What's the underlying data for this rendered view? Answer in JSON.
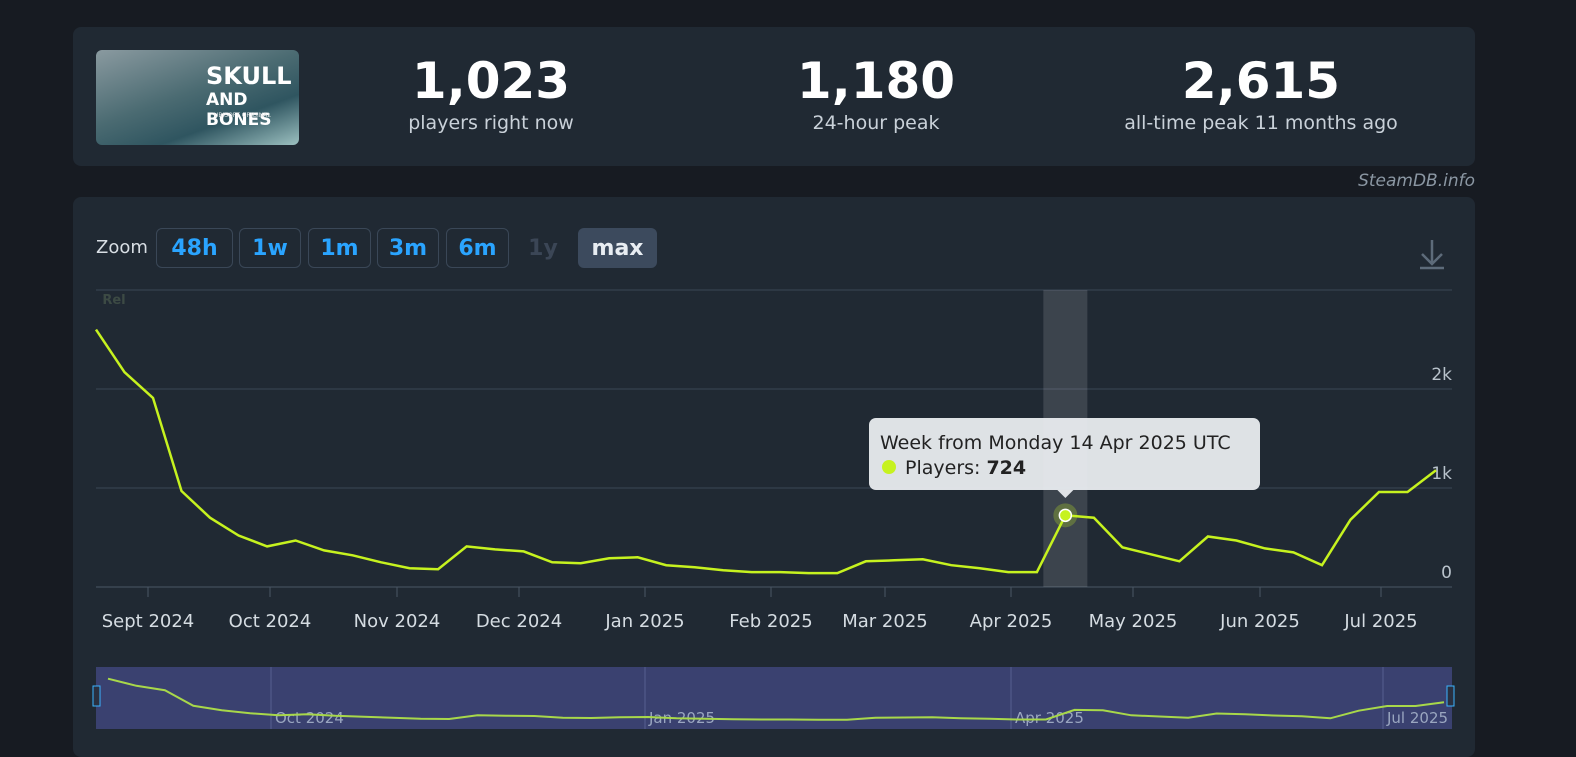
{
  "header": {
    "game_art": {
      "title": "SKULL",
      "subtitle": "AND BONES",
      "tagline": "UBISOFT ORIGINAL"
    },
    "stats": [
      {
        "value": "1,023",
        "label": "players right now"
      },
      {
        "value": "1,180",
        "label": "24-hour peak"
      },
      {
        "value": "2,615",
        "label": "all-time peak 11 months ago"
      }
    ],
    "credit": "SteamDB.info"
  },
  "zoom": {
    "label": "Zoom",
    "buttons": [
      "48h",
      "1w",
      "1m",
      "3m",
      "6m",
      "1y",
      "max"
    ],
    "disabled": "1y",
    "active": "max"
  },
  "chart_data": {
    "type": "line",
    "color": "#c6f21f",
    "series_name": "Players",
    "values": [
      2600,
      2170,
      1910,
      970,
      700,
      520,
      410,
      470,
      370,
      320,
      250,
      190,
      180,
      410,
      380,
      360,
      250,
      240,
      290,
      300,
      220,
      200,
      170,
      150,
      150,
      140,
      140,
      260,
      270,
      280,
      220,
      190,
      150,
      150,
      724,
      700,
      400,
      330,
      260,
      510,
      470,
      390,
      350,
      220,
      680,
      960,
      960,
      1180
    ],
    "xticks": [
      "Sept 2024",
      "Oct 2024",
      "Nov 2024",
      "Dec 2024",
      "Jan 2025",
      "Feb 2025",
      "Mar 2025",
      "Apr 2025",
      "May 2025",
      "Jun 2025",
      "Jul 2025"
    ],
    "ylim": [
      0,
      3000
    ],
    "yticks": [
      0,
      {
        "value": 1000,
        "label": "1k"
      },
      {
        "value": 2000,
        "label": "2k"
      }
    ],
    "grid": true,
    "badge": "Rel",
    "tooltip": {
      "title": "Week from Monday 14 Apr 2025 UTC",
      "series_label": "Players:",
      "index": 34
    },
    "navigator_labels": [
      "Oct 2024",
      "Jan 2025",
      "Apr 2025",
      "Jul 2025"
    ]
  }
}
